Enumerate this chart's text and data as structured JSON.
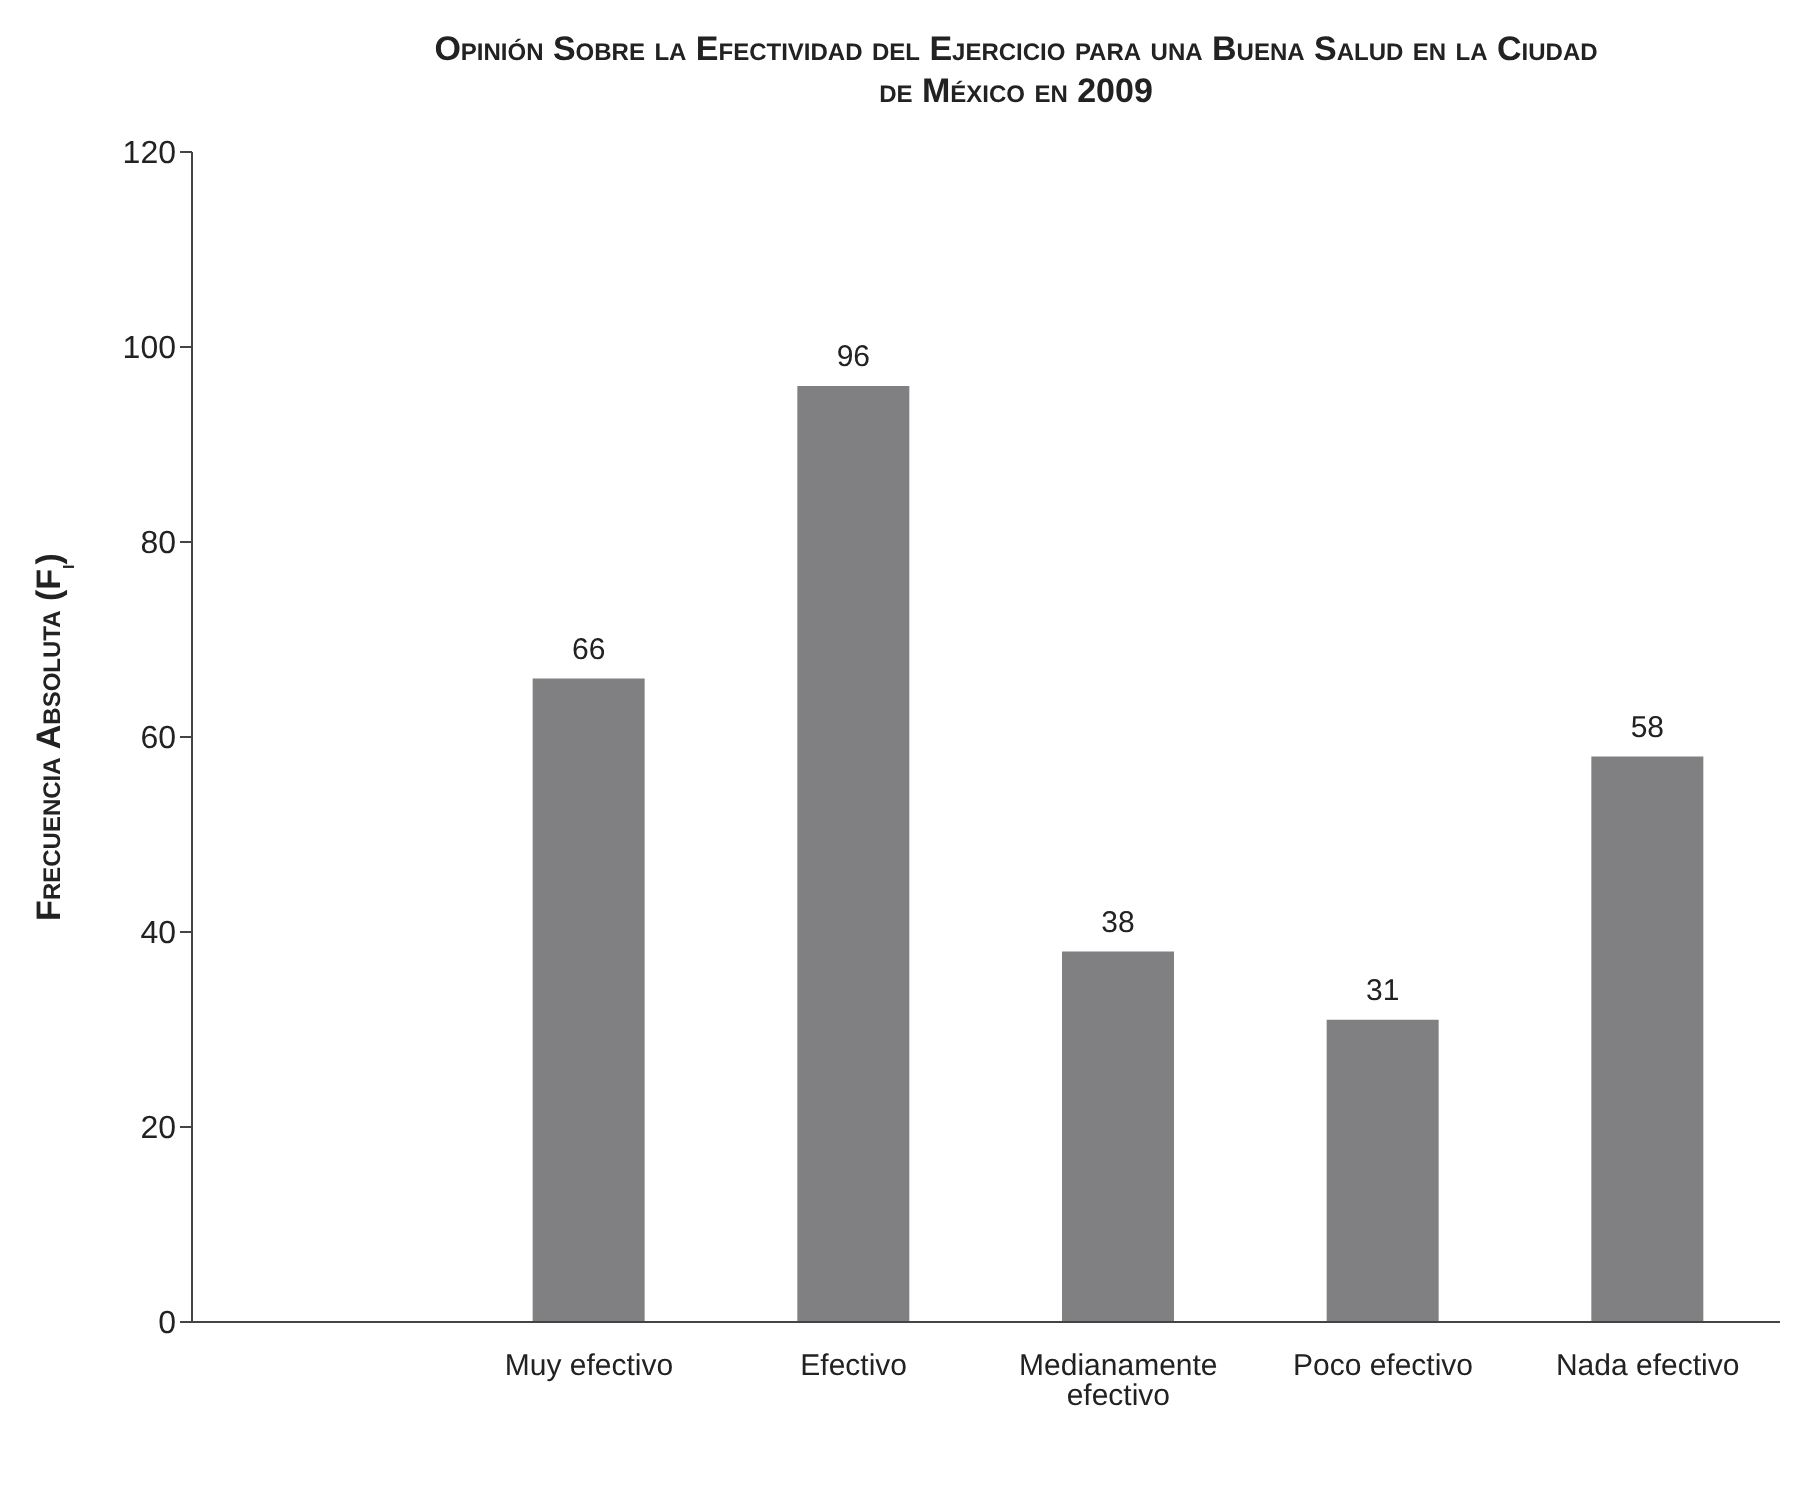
{
  "chart_data": {
    "type": "bar",
    "title": "Opinión Sobre la Efectividad del Ejercicio para una Buena Salud en la Ciudad de México en 2009",
    "ylabel": "Frecuencia Absoluta (F$_{i}$)",
    "categories": [
      null,
      "Muy efectivo",
      "Efectivo",
      "Medianamente efectivo",
      "Poco efectivo",
      "Nada efectivo"
    ],
    "values": [
      null,
      66,
      96,
      38,
      31,
      58
    ],
    "color": "#808083",
    "ylim": [
      0,
      120
    ],
    "yticks": [
      0,
      20,
      40,
      60,
      80,
      100,
      120
    ],
    "data_labels": true,
    "grid": false,
    "legend": false
  }
}
